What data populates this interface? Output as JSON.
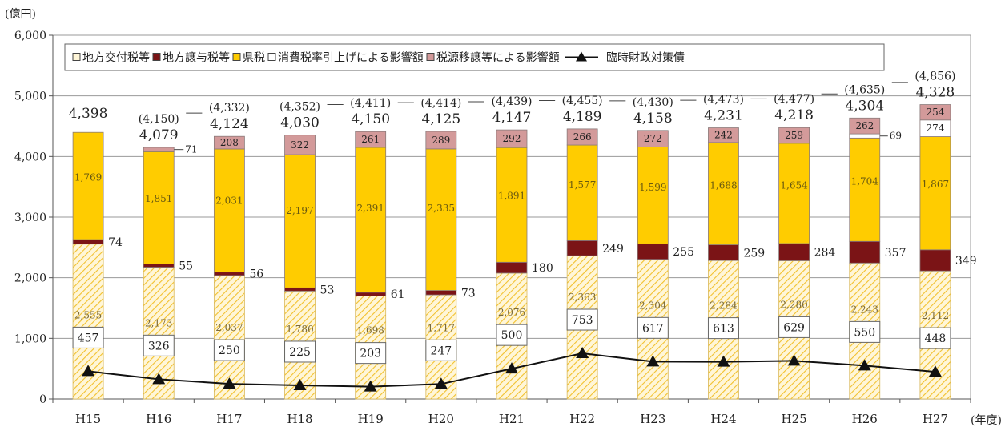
{
  "chart_data": {
    "type": "bar",
    "ylabel": "(億円)",
    "xlabel": "(年度)",
    "ylim": [
      0,
      6000
    ],
    "yticks": [
      "0",
      "1,000",
      "2,000",
      "3,000",
      "4,000",
      "5,000",
      "6,000"
    ],
    "grid": true,
    "legend": "top",
    "categories": [
      "H15",
      "H16",
      "H17",
      "H18",
      "H19",
      "H20",
      "H21",
      "H22",
      "H23",
      "H24",
      "H25",
      "H26",
      "H27"
    ],
    "series": [
      {
        "name": "地方交付税等",
        "values": [
          2555,
          2173,
          2037,
          1780,
          1698,
          1717,
          2076,
          2363,
          2304,
          2284,
          2280,
          2243,
          2112
        ],
        "color": "#fff6d8",
        "hatch": "#f2c12e"
      },
      {
        "name": "地方譲与税等",
        "values": [
          74,
          55,
          56,
          53,
          61,
          73,
          180,
          249,
          255,
          259,
          284,
          357,
          349
        ],
        "color": "#7b1416"
      },
      {
        "name": "県税",
        "values": [
          1769,
          1851,
          2031,
          2197,
          2391,
          2335,
          1891,
          1577,
          1599,
          1688,
          1654,
          1704,
          1867
        ],
        "color": "#ffcc00"
      },
      {
        "name": "消費税率引上げによる影響額",
        "values": [
          null,
          null,
          null,
          null,
          null,
          null,
          null,
          null,
          null,
          null,
          null,
          69,
          274
        ],
        "color": "#ffffff"
      },
      {
        "name": "税源移譲等による影響額",
        "values": [
          null,
          71,
          208,
          322,
          261,
          289,
          292,
          266,
          272,
          242,
          259,
          262,
          254
        ],
        "color": "#d39a9a"
      }
    ],
    "line_series": {
      "name": "臨時財政対策債",
      "values": [
        457,
        326,
        250,
        225,
        203,
        247,
        500,
        753,
        617,
        613,
        629,
        550,
        448
      ],
      "marker": "triangle"
    },
    "base_totals": [
      "4,398",
      "4,079",
      "4,124",
      "4,030",
      "4,150",
      "4,125",
      "4,147",
      "4,189",
      "4,158",
      "4,231",
      "4,218",
      "4,304",
      "4,328"
    ],
    "overall_totals": [
      null,
      "(4,150)",
      "(4,332)",
      "(4,352)",
      "(4,411)",
      "(4,414)",
      "(4,439)",
      "(4,455)",
      "(4,430)",
      "(4,473)",
      "(4,477)",
      "(4,635)",
      "(4,856)"
    ]
  }
}
